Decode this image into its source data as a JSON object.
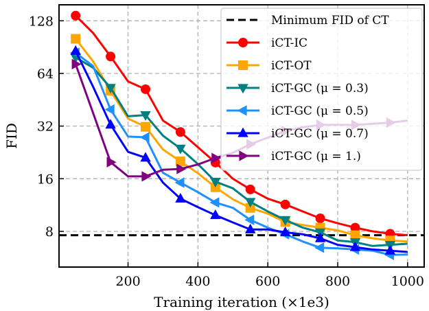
{
  "chart_data": {
    "type": "line",
    "title": "",
    "xlabel": "Training iteration (×1e3)",
    "ylabel": "FID",
    "xlim": [
      2.5,
      1047.5
    ],
    "ylim": [
      5.0,
      158
    ],
    "yscale": "log2",
    "xticks": [
      200,
      400,
      600,
      800,
      1000
    ],
    "xtick_labels": [
      "200",
      "400",
      "600",
      "800",
      "1000"
    ],
    "yticks": [
      8,
      16,
      32,
      64,
      128
    ],
    "ytick_labels": [
      "8",
      "16",
      "32",
      "64",
      "128"
    ],
    "grid": true,
    "legend_placement": "upper-right",
    "x": [
      50,
      100,
      150,
      200,
      250,
      300,
      350,
      400,
      450,
      500,
      550,
      600,
      650,
      700,
      750,
      800,
      850,
      900,
      950,
      1000
    ],
    "hline": {
      "name": "Minimum FID of CT",
      "value": 7.6,
      "color": "#000000",
      "style": "dashed"
    },
    "series": [
      {
        "name": "iCT-IC",
        "color": "#ff0000",
        "marker": "circle",
        "values": [
          137,
          109,
          80,
          57.6,
          52,
          34.4,
          29.6,
          24.2,
          19.8,
          16,
          13.9,
          12.3,
          11.4,
          10.4,
          9.5,
          8.9,
          8.4,
          8.0,
          7.75,
          7.6
        ]
      },
      {
        "name": "iCT-OT",
        "color": "#ffa500",
        "marker": "square",
        "values": [
          101,
          75,
          51,
          35.3,
          31.7,
          23.5,
          20.1,
          17.2,
          14.3,
          12.2,
          10.9,
          10.1,
          9.05,
          8.7,
          8.4,
          8.1,
          7.6,
          7.3,
          7.1,
          7.0
        ]
      },
      {
        "name": "iCT-GC (μ = 0.3)",
        "color": "#008080",
        "marker": "triangle-down",
        "values": [
          79,
          69,
          53,
          36.4,
          37,
          28.2,
          23.8,
          19.4,
          15.4,
          14.1,
          11.8,
          10.4,
          9.3,
          8.4,
          7.9,
          7.1,
          6.94,
          6.6,
          6.7,
          6.8
        ]
      },
      {
        "name": "iCT-GC (μ = 0.5)",
        "color": "#1e90ff",
        "marker": "triangle-left",
        "values": [
          84,
          70.5,
          39.8,
          27.9,
          27.6,
          17.3,
          15.2,
          13.4,
          11.7,
          10.9,
          9.3,
          8.4,
          7.7,
          7.0,
          6.45,
          6.4,
          6.3,
          6.2,
          5.87,
          5.9
        ]
      },
      {
        "name": "iCT-GC (μ = 0.7)",
        "color": "#0000ff",
        "marker": "triangle-up",
        "values": [
          86,
          53.7,
          32.6,
          22.8,
          21.1,
          15.2,
          12.3,
          11,
          9.9,
          9.0,
          8.2,
          8.2,
          7.9,
          7.7,
          7.3,
          6.7,
          6.5,
          6.3,
          6.2,
          6.1
        ]
      },
      {
        "name": "iCT-GC (μ = 1.)",
        "color": "#800080",
        "marker": "triangle-right",
        "values": [
          72.3,
          38,
          19.9,
          16.5,
          16.5,
          18.0,
          18.2,
          19.3,
          21,
          22.5,
          25.2,
          27.5,
          30,
          31.5,
          32.5,
          32.5,
          32.5,
          33,
          33.5,
          34.4
        ]
      }
    ]
  }
}
